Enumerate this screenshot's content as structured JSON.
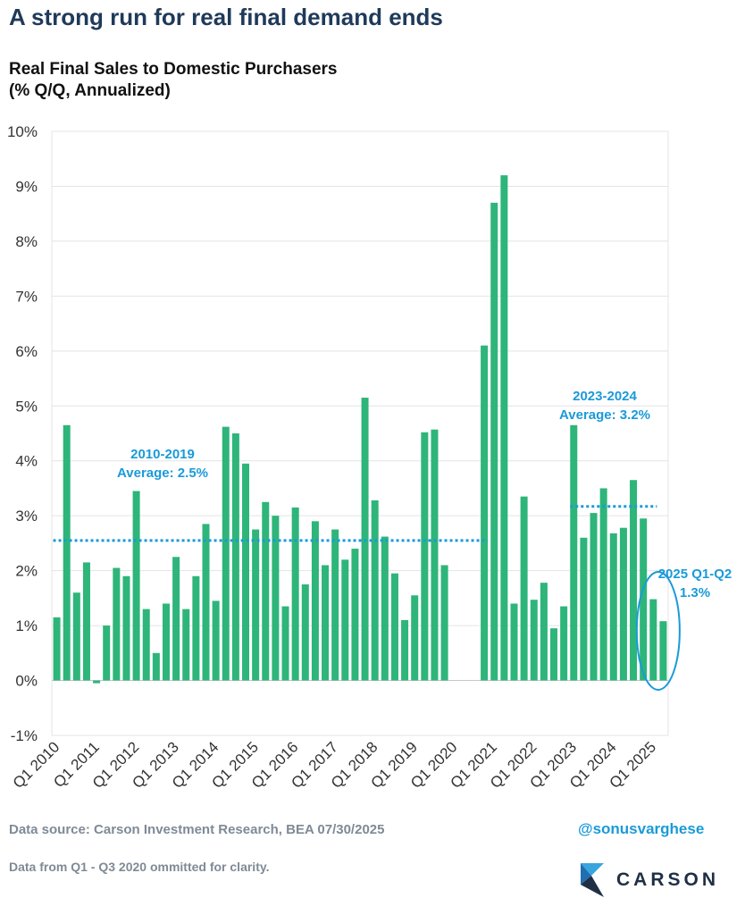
{
  "header": {
    "headline": "A strong run for real final demand ends",
    "subtitle_line1": "Real Final Sales to Domestic Purchasers",
    "subtitle_line2": "(% Q/Q, Annualized)"
  },
  "footer": {
    "source": "Data source: Carson Investment Research, BEA   07/30/2025",
    "note": "Data from Q1 - Q3 2020 ommitted for clarity.",
    "handle": "@sonusvarghese",
    "brand": "CARSON"
  },
  "colors": {
    "bar": "#2eb57a",
    "avg_line": "#1a9ad9",
    "annotation": "#1a9ad9",
    "grid": "#e4e4e4",
    "axis_text": "#333333"
  },
  "icons": {
    "brand_logo": "carson-logo-icon"
  },
  "chart_data": {
    "type": "bar",
    "title": "Real Final Sales to Domestic Purchasers",
    "subtitle": "(% Q/Q, Annualized)",
    "ylim": [
      -1,
      10
    ],
    "yticks": [
      "-1%",
      "0%",
      "1%",
      "2%",
      "3%",
      "4%",
      "5%",
      "6%",
      "7%",
      "8%",
      "9%",
      "10%"
    ],
    "xtick_labels": [
      "Q1 2010",
      "Q1 2011",
      "Q1 2012",
      "Q1 2013",
      "Q1 2014",
      "Q1 2015",
      "Q1 2016",
      "Q1 2017",
      "Q1 2018",
      "Q1 2019",
      "Q1 2020",
      "Q1 2021",
      "Q1 2022",
      "Q1 2023",
      "Q1 2024",
      "Q1 2025"
    ],
    "categories": [
      "Q1 2010",
      "Q2 2010",
      "Q3 2010",
      "Q4 2010",
      "Q1 2011",
      "Q2 2011",
      "Q3 2011",
      "Q4 2011",
      "Q1 2012",
      "Q2 2012",
      "Q3 2012",
      "Q4 2012",
      "Q1 2013",
      "Q2 2013",
      "Q3 2013",
      "Q4 2013",
      "Q1 2014",
      "Q2 2014",
      "Q3 2014",
      "Q4 2014",
      "Q1 2015",
      "Q2 2015",
      "Q3 2015",
      "Q4 2015",
      "Q1 2016",
      "Q2 2016",
      "Q3 2016",
      "Q4 2016",
      "Q1 2017",
      "Q2 2017",
      "Q3 2017",
      "Q4 2017",
      "Q1 2018",
      "Q2 2018",
      "Q3 2018",
      "Q4 2018",
      "Q1 2019",
      "Q2 2019",
      "Q3 2019",
      "Q4 2019",
      "Q1 2020",
      "Q2 2020",
      "Q3 2020",
      "Q4 2020",
      "Q1 2021",
      "Q2 2021",
      "Q3 2021",
      "Q4 2021",
      "Q1 2022",
      "Q2 2022",
      "Q3 2022",
      "Q4 2022",
      "Q1 2023",
      "Q2 2023",
      "Q3 2023",
      "Q4 2023",
      "Q1 2024",
      "Q2 2024",
      "Q3 2024",
      "Q4 2024",
      "Q1 2025",
      "Q2 2025"
    ],
    "values": [
      1.15,
      4.65,
      1.6,
      2.15,
      -0.05,
      1.0,
      2.05,
      1.9,
      3.45,
      1.3,
      0.5,
      1.4,
      2.25,
      1.3,
      1.9,
      2.85,
      1.45,
      4.62,
      4.5,
      3.95,
      2.75,
      3.25,
      3.0,
      1.35,
      3.15,
      1.75,
      2.9,
      2.1,
      2.75,
      2.2,
      2.4,
      5.15,
      3.28,
      2.62,
      1.95,
      1.1,
      1.55,
      4.52,
      4.57,
      2.1,
      null,
      null,
      null,
      6.1,
      8.7,
      9.2,
      1.4,
      3.35,
      1.47,
      1.78,
      0.95,
      1.35,
      4.65,
      2.6,
      3.05,
      3.5,
      2.68,
      2.78,
      3.65,
      2.95,
      1.48,
      1.08
    ],
    "averages": [
      {
        "label_line1": "2010-2019",
        "label_line2": "Average: 2.5%",
        "value": 2.55,
        "from": "Q1 2010",
        "to": "Q4 2020"
      },
      {
        "label_line1": "2023-2024",
        "label_line2": "Average: 3.2%",
        "value": 3.17,
        "from": "Q1 2023",
        "to": "Q1 2025"
      }
    ],
    "highlight": {
      "label_line1": "2025 Q1-Q2",
      "label_line2": "1.3%",
      "from": "Q1 2025",
      "to": "Q2 2025"
    },
    "grid": true,
    "legend": "none"
  }
}
